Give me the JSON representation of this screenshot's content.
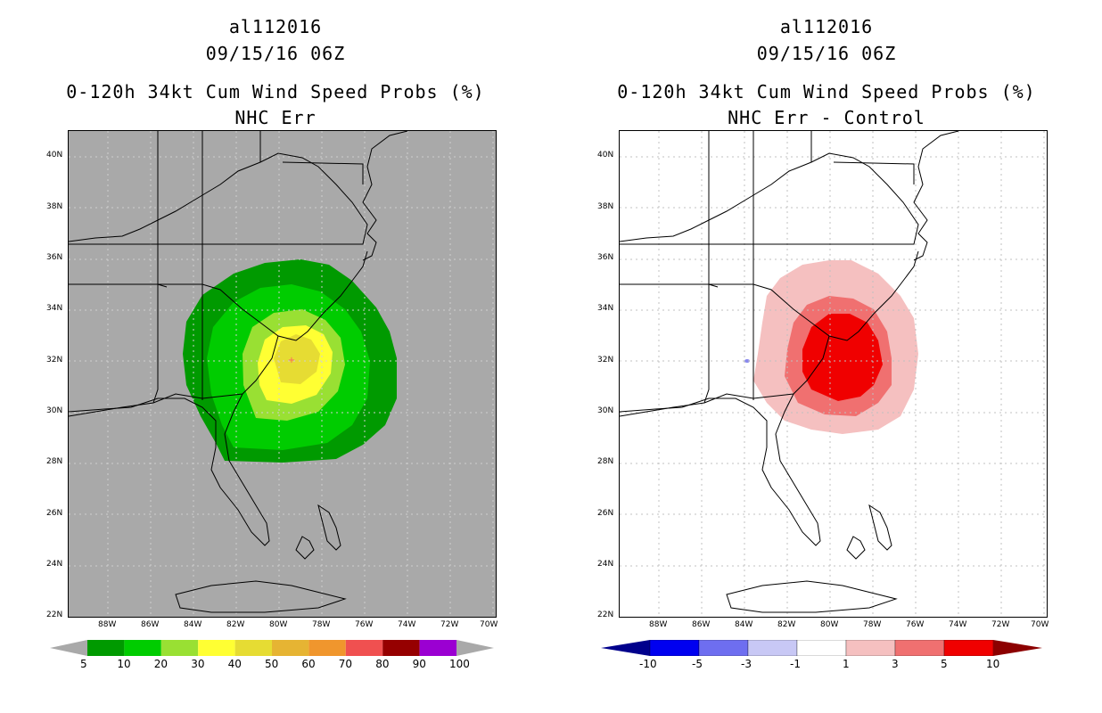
{
  "left_panel": {
    "storm_id": "al112016",
    "datetime": "09/15/16 06Z",
    "product": "0-120h 34kt Cum Wind Speed Probs (%)",
    "subtitle": "NHC Err",
    "background_color": "#a9a9a9",
    "colorbar": {
      "labels": [
        "5",
        "10",
        "20",
        "30",
        "40",
        "50",
        "60",
        "70",
        "80",
        "90",
        "100"
      ],
      "colors": [
        "#009a00",
        "#00cc00",
        "#99e033",
        "#ffff33",
        "#e6dc33",
        "#e6b433",
        "#f0962d",
        "#f05050",
        "#960000",
        "#9b00d2"
      ]
    },
    "contours": [
      {
        "level": "5",
        "color": "#009a00"
      },
      {
        "level": "10",
        "color": "#00cc00"
      },
      {
        "level": "20",
        "color": "#99e033"
      },
      {
        "level": "30",
        "color": "#ffff33"
      },
      {
        "level": "40",
        "color": "#e6dc33"
      }
    ]
  },
  "right_panel": {
    "storm_id": "al112016",
    "datetime": "09/15/16 06Z",
    "product": "0-120h 34kt Cum Wind Speed Probs (%)",
    "subtitle": "NHC Err - Control",
    "background_color": "#ffffff",
    "colorbar": {
      "labels": [
        "-10",
        "-5",
        "-3",
        "-1",
        "1",
        "3",
        "5",
        "10"
      ],
      "colors": [
        "#00008c",
        "#0000f0",
        "#6e6ef0",
        "#c8c8f5",
        "#ffffff",
        "#f5c0c0",
        "#f07070",
        "#f00000",
        "#8c0000"
      ]
    },
    "contours": [
      {
        "level": "1",
        "color": "#f5c0c0"
      },
      {
        "level": "3",
        "color": "#f07070"
      },
      {
        "level": "5",
        "color": "#f00000"
      }
    ]
  },
  "axes": {
    "lat_labels": [
      "40N",
      "38N",
      "36N",
      "34N",
      "32N",
      "30N",
      "28N",
      "26N",
      "24N",
      "22N"
    ],
    "lon_labels": [
      "88W",
      "86W",
      "84W",
      "82W",
      "80W",
      "78W",
      "76W",
      "74W",
      "72W",
      "70W"
    ]
  }
}
